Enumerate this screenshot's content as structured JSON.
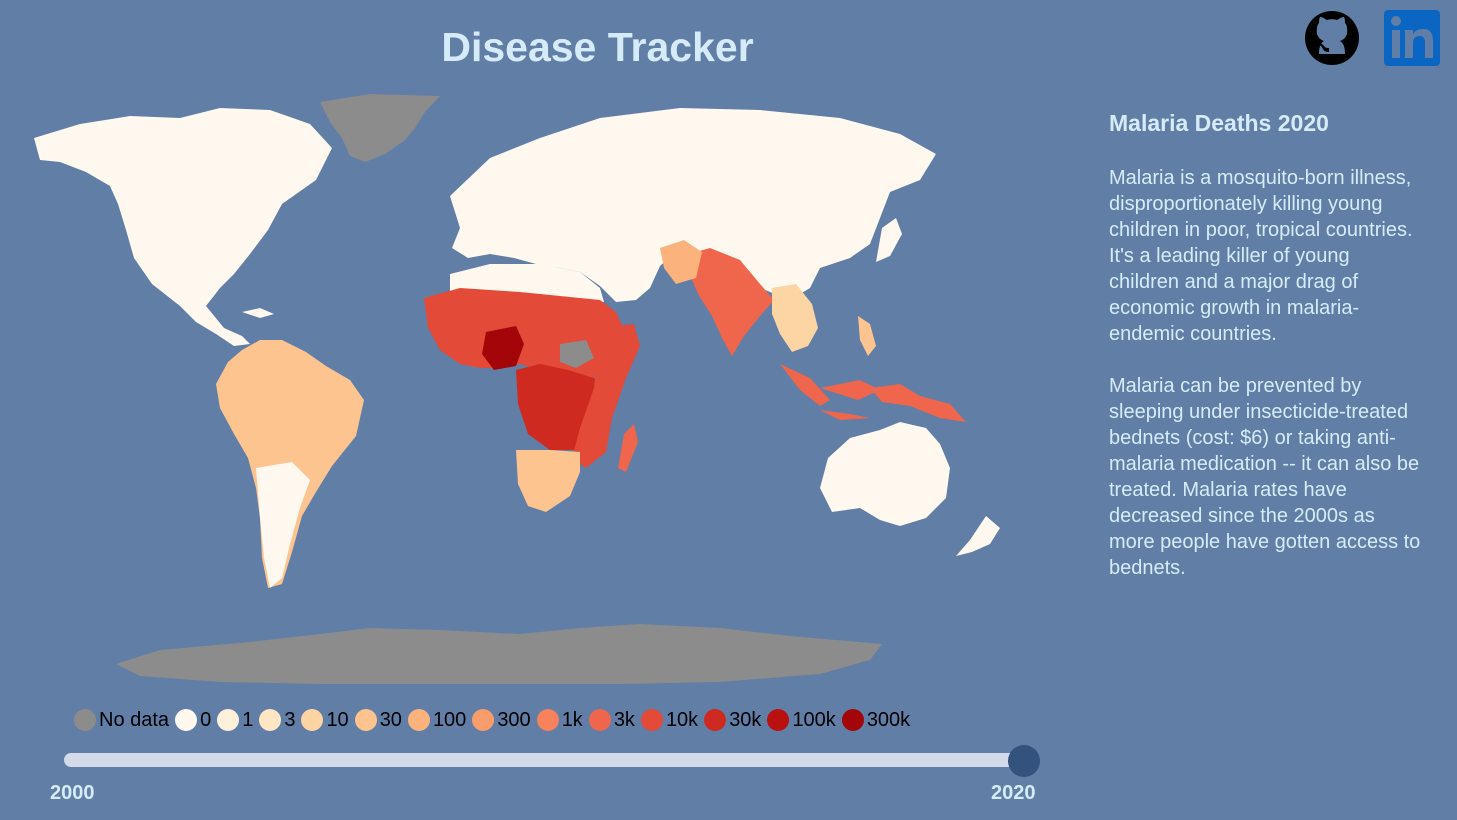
{
  "header": {
    "title": "Disease Tracker"
  },
  "links": {
    "github": "github-icon",
    "linkedin": "linkedin-icon"
  },
  "colors": {
    "background": "#607ea6",
    "no_data": "#8c8c8c",
    "accent_text": "#d5ecf8",
    "slider_track": "#d3dbe9",
    "slider_thumb": "#34527e"
  },
  "map": {
    "type": "choropleth",
    "metric": "Malaria deaths",
    "year": 2020
  },
  "legend": {
    "items": [
      {
        "label": "No data",
        "color": "#8c8c8c"
      },
      {
        "label": "0",
        "color": "#fff8ef"
      },
      {
        "label": "1",
        "color": "#fff0dc"
      },
      {
        "label": "3",
        "color": "#fee6c4"
      },
      {
        "label": "10",
        "color": "#fdd4a4"
      },
      {
        "label": "30",
        "color": "#fdc490"
      },
      {
        "label": "100",
        "color": "#fcb27c"
      },
      {
        "label": "300",
        "color": "#fb9c6c"
      },
      {
        "label": "1k",
        "color": "#f7825c"
      },
      {
        "label": "3k",
        "color": "#f0664c"
      },
      {
        "label": "10k",
        "color": "#e34a37"
      },
      {
        "label": "30k",
        "color": "#cf2a1f"
      },
      {
        "label": "100k",
        "color": "#b91010"
      },
      {
        "label": "300k",
        "color": "#a30508"
      }
    ]
  },
  "slider": {
    "min": 2000,
    "max": 2020,
    "value": 2020,
    "min_label": "2000",
    "max_label": "2020"
  },
  "info": {
    "heading": "Malaria Deaths 2020",
    "paragraphs": [
      "Malaria is a mosquito-born illness, disproportionately killing young children in poor, tropical countries. It's a leading killer of young children and a major drag of economic growth in malaria-endemic countries.",
      "Malaria can be prevented by sleeping under insecticide-treated bednets (cost: $6) or taking anti-malaria medication -- it can also be treated. Malaria rates have decreased since the 2000s as more people have gotten access to bednets."
    ]
  }
}
